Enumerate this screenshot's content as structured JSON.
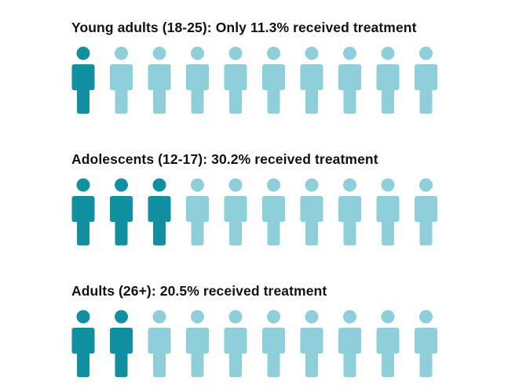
{
  "colors": {
    "highlight": "#128fa0",
    "base": "#8ecfd9",
    "text": "#111111"
  },
  "icon": "person-icon",
  "groups": [
    {
      "title": "Young adults (18-25): Only 11.3% received treatment",
      "percent": 11.3,
      "highlighted": 1,
      "total": 10
    },
    {
      "title": "Adolescents (12-17): 30.2% received treatment",
      "percent": 30.2,
      "highlighted": 3,
      "total": 10
    },
    {
      "title": "Adults (26+): 20.5% received treatment",
      "percent": 20.5,
      "highlighted": 2,
      "total": 10
    }
  ],
  "chart_data": {
    "type": "pictograph",
    "unit": "person icon (1 of 10)",
    "categories": [
      "Young adults (18-25)",
      "Adolescents (12-17)",
      "Adults (26+)"
    ],
    "values": [
      11.3,
      30.2,
      20.5
    ],
    "highlighted_icons": [
      1,
      3,
      2
    ],
    "icons_per_row": 10
  }
}
